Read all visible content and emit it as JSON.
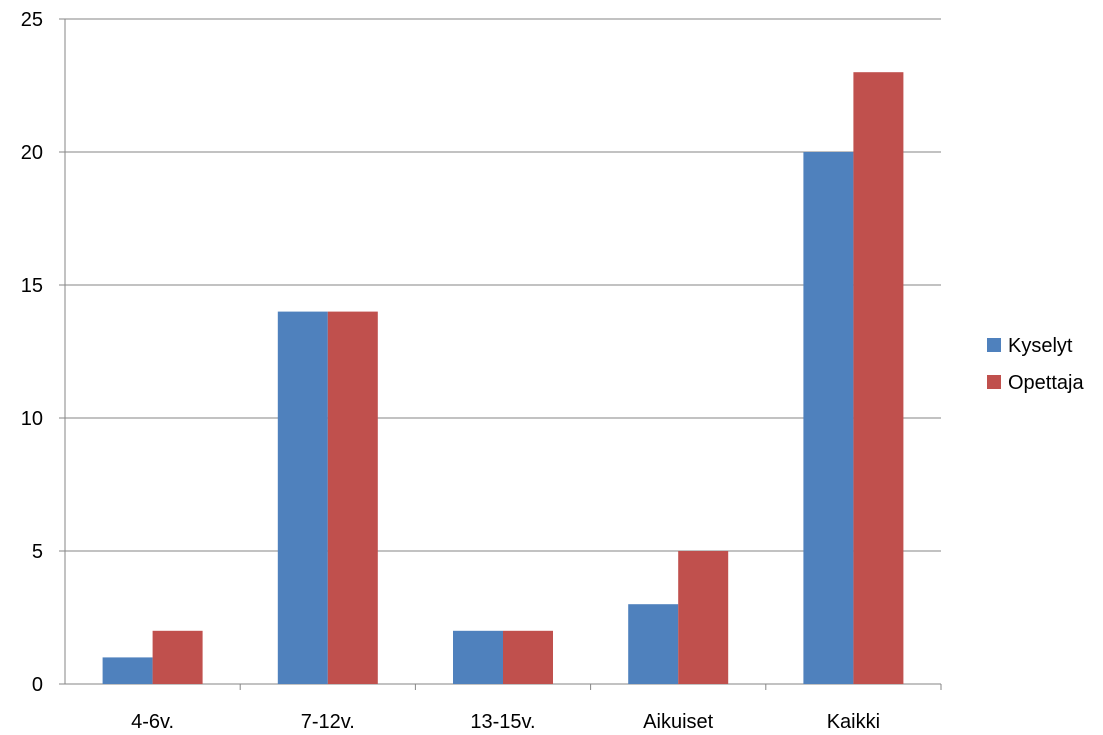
{
  "chart_data": {
    "type": "bar",
    "categories": [
      "4-6v.",
      "7-12v.",
      "13-15v.",
      "Aikuiset",
      "Kaikki"
    ],
    "series": [
      {
        "name": "Kyselyt",
        "color": "#4F81BD",
        "values": [
          1,
          14,
          2,
          3,
          20
        ]
      },
      {
        "name": "Opettaja",
        "color": "#C0504D",
        "values": [
          2,
          14,
          2,
          5,
          23
        ]
      }
    ],
    "ylim": [
      0,
      25
    ],
    "yticks": [
      0,
      5,
      10,
      15,
      20,
      25
    ],
    "grid": true,
    "legend_position": "right",
    "title": "",
    "xlabel": "",
    "ylabel": ""
  }
}
